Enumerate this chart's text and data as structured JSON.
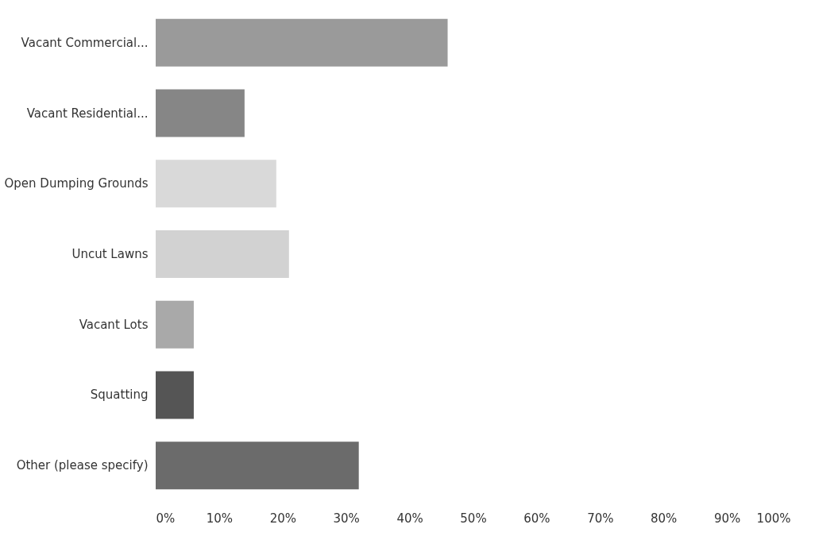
{
  "chart_data": {
    "type": "bar",
    "orientation": "horizontal",
    "categories": [
      "Vacant Commercial...",
      "Vacant Residential...",
      "Open Dumping Grounds",
      "Uncut Lawns",
      "Vacant Lots",
      "Squatting",
      "Other (please specify)"
    ],
    "values": [
      46,
      14,
      19,
      21,
      6,
      6,
      32
    ],
    "colors": [
      "#9a9a9a",
      "#868686",
      "#d9d9d9",
      "#d2d2d2",
      "#a9a9a9",
      "#555555",
      "#6b6b6b"
    ],
    "xlim": [
      0,
      100
    ],
    "xticks": [
      {
        "value": 0,
        "label": "0%"
      },
      {
        "value": 10,
        "label": "10%"
      },
      {
        "value": 20,
        "label": "20%"
      },
      {
        "value": 30,
        "label": "30%"
      },
      {
        "value": 40,
        "label": "40%"
      },
      {
        "value": 50,
        "label": "50%"
      },
      {
        "value": 60,
        "label": "60%"
      },
      {
        "value": 70,
        "label": "70%"
      },
      {
        "value": 80,
        "label": "80%"
      },
      {
        "value": 90,
        "label": "90%"
      },
      {
        "value": 100,
        "label": "100%"
      }
    ],
    "grid": false
  }
}
